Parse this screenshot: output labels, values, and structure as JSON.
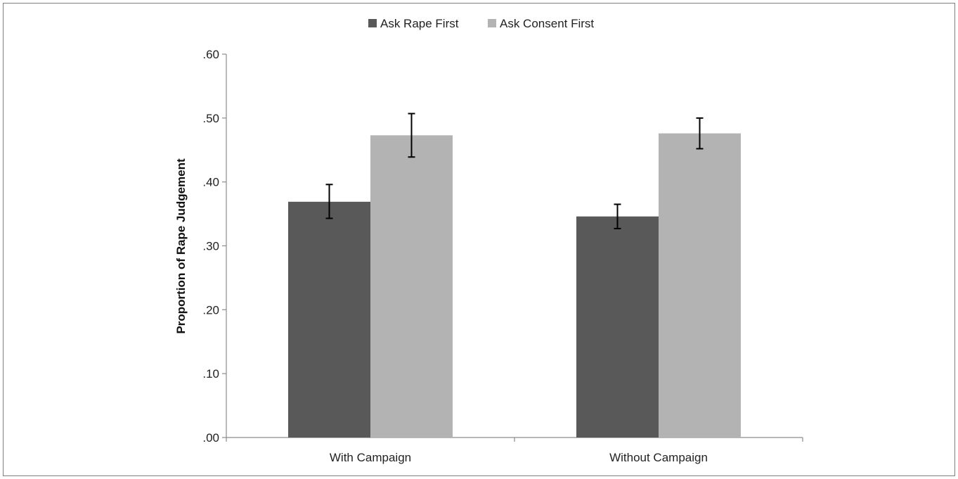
{
  "chart_data": {
    "type": "bar",
    "title": "",
    "xlabel": "",
    "ylabel": "Proportion of Rape Judgement",
    "categories": [
      "With Campaign",
      "Without Campaign"
    ],
    "series": [
      {
        "name": "Ask Rape First",
        "color": "#595959",
        "values": [
          0.369,
          0.346
        ],
        "error_low": [
          0.343,
          0.327
        ],
        "error_high": [
          0.396,
          0.365
        ]
      },
      {
        "name": "Ask Consent First",
        "color": "#b3b3b3",
        "values": [
          0.473,
          0.476
        ],
        "error_low": [
          0.439,
          0.452
        ],
        "error_high": [
          0.507,
          0.5
        ]
      }
    ],
    "ylim": [
      0,
      0.6
    ],
    "yticks": [
      0,
      0.1,
      0.2,
      0.3,
      0.4,
      0.5,
      0.6
    ],
    "ytick_labels": [
      ".00",
      ".10",
      ".20",
      ".30",
      ".40",
      ".50",
      ".60"
    ],
    "grid": false,
    "legend_position": "top-center",
    "error_bars": true
  }
}
